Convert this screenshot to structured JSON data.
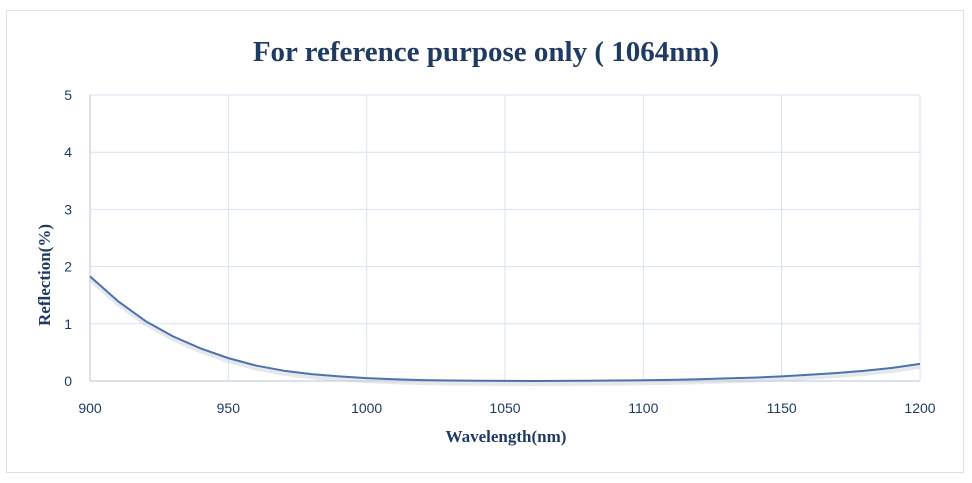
{
  "chart_data": {
    "type": "line",
    "title": "For reference purpose only ( 1064nm)",
    "xlabel": "Wavelength(nm)",
    "ylabel": "Reflection(%)",
    "xlim": [
      900,
      1200
    ],
    "ylim": [
      0,
      5
    ],
    "xticks": [
      "900",
      "950",
      "1000",
      "1050",
      "1100",
      "1150",
      "1200"
    ],
    "yticks": [
      "0",
      "1",
      "2",
      "3",
      "4",
      "5"
    ],
    "grid": true,
    "legend": "none",
    "series": [
      {
        "color": "#4a72ad",
        "x": [
          900,
          910,
          920,
          930,
          940,
          950,
          960,
          970,
          980,
          990,
          1000,
          1010,
          1020,
          1030,
          1040,
          1050,
          1060,
          1070,
          1080,
          1090,
          1100,
          1110,
          1120,
          1130,
          1140,
          1150,
          1160,
          1170,
          1180,
          1190,
          1200
        ],
        "y": [
          1.83,
          1.4,
          1.05,
          0.78,
          0.57,
          0.4,
          0.27,
          0.18,
          0.12,
          0.08,
          0.05,
          0.03,
          0.015,
          0.008,
          0.004,
          0.002,
          0.001,
          0.002,
          0.004,
          0.008,
          0.013,
          0.02,
          0.03,
          0.045,
          0.06,
          0.08,
          0.11,
          0.14,
          0.18,
          0.23,
          0.3
        ]
      }
    ]
  },
  "colors": {
    "grid": "#d6e3f3",
    "axis": "#b8c4d4",
    "title": "#1f3b63",
    "line": "#4a72ad"
  }
}
